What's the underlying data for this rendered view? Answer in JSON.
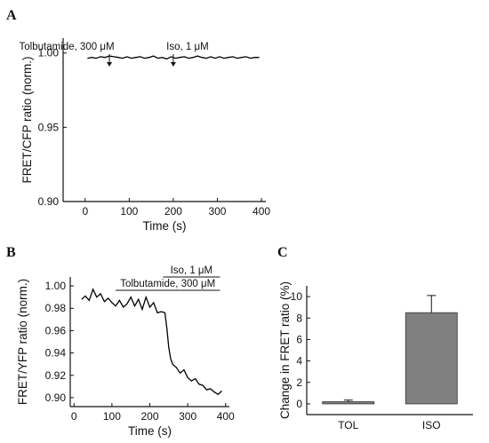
{
  "panels": {
    "a": {
      "letter": "A"
    },
    "b": {
      "letter": "B"
    },
    "c": {
      "letter": "C"
    }
  },
  "chart_data": [
    {
      "type": "line",
      "panel": "A",
      "xlabel": "Time (s)",
      "ylabel": "FRET/CFP ratio (norm.)",
      "xlim": [
        -50,
        410
      ],
      "ylim": [
        0.9,
        1.01
      ],
      "xticks": [
        0,
        100,
        200,
        300,
        400
      ],
      "yticks": [
        0.9,
        0.95,
        1.0
      ],
      "xtick_labels": [
        "0",
        "100",
        "200",
        "300",
        "400"
      ],
      "ytick_labels": [
        "0.90",
        "0.95",
        "1.00"
      ],
      "grid": false,
      "annotations": [
        {
          "text": "Tolbutamide, 300 μM",
          "x": 55
        },
        {
          "text": "Iso, 1 μM",
          "x": 200
        }
      ],
      "series": [
        {
          "x": [
            5,
            15,
            25,
            35,
            45,
            55,
            65,
            75,
            85,
            95,
            105,
            115,
            125,
            135,
            145,
            155,
            165,
            175,
            185,
            195,
            205,
            215,
            225,
            235,
            245,
            255,
            265,
            275,
            285,
            295,
            305,
            315,
            325,
            335,
            345,
            355,
            365,
            375,
            385,
            395
          ],
          "y": [
            0.9965,
            0.997,
            0.9965,
            0.9975,
            0.997,
            0.998,
            0.9975,
            0.997,
            0.9965,
            0.9975,
            0.9965,
            0.997,
            0.9975,
            0.9965,
            0.997,
            0.998,
            0.9965,
            0.997,
            0.996,
            0.9975,
            0.9965,
            0.997,
            0.9975,
            0.9965,
            0.997,
            0.998,
            0.997,
            0.9965,
            0.9975,
            0.9965,
            0.9975,
            0.9965,
            0.997,
            0.9975,
            0.9965,
            0.997,
            0.9975,
            0.9965,
            0.997,
            0.997
          ]
        }
      ]
    },
    {
      "type": "line",
      "panel": "B",
      "xlabel": "Time (s)",
      "ylabel": "FRET/YFP ratio (norm.)",
      "xlim": [
        -10,
        410
      ],
      "ylim": [
        0.892,
        1.008
      ],
      "xticks": [
        0,
        100,
        200,
        300,
        400
      ],
      "yticks": [
        0.9,
        0.92,
        0.94,
        0.96,
        0.98,
        1.0
      ],
      "xtick_labels": [
        "0",
        "100",
        "200",
        "300",
        "400"
      ],
      "ytick_labels": [
        "0.90",
        "0.92",
        "0.94",
        "0.96",
        "0.98",
        "1.00"
      ],
      "grid": false,
      "annotations": [
        {
          "text": "Tolbutamide, 300 μM",
          "x_start": 110,
          "x_end": 385
        },
        {
          "text": "Iso, 1 μM",
          "x_start": 235,
          "x_end": 385
        }
      ],
      "series": [
        {
          "x": [
            20,
            30,
            40,
            50,
            60,
            70,
            80,
            90,
            100,
            110,
            120,
            130,
            140,
            150,
            160,
            170,
            180,
            190,
            200,
            210,
            220,
            230,
            240,
            245,
            250,
            255,
            260,
            270,
            280,
            290,
            300,
            310,
            320,
            330,
            340,
            350,
            360,
            370,
            380,
            390
          ],
          "y": [
            0.988,
            0.991,
            0.987,
            0.997,
            0.99,
            0.993,
            0.986,
            0.989,
            0.985,
            0.982,
            0.987,
            0.981,
            0.984,
            0.99,
            0.982,
            0.988,
            0.979,
            0.99,
            0.981,
            0.985,
            0.976,
            0.977,
            0.976,
            0.962,
            0.945,
            0.935,
            0.93,
            0.927,
            0.922,
            0.925,
            0.918,
            0.915,
            0.917,
            0.912,
            0.911,
            0.907,
            0.908,
            0.905,
            0.903,
            0.906
          ]
        }
      ]
    },
    {
      "type": "bar",
      "panel": "C",
      "categories": [
        "TOL",
        "ISO"
      ],
      "values": [
        0.2,
        8.5
      ],
      "errors": [
        0.15,
        1.6
      ],
      "xlabel": "",
      "ylabel": "Change in FRET ratio (%)",
      "ylim": [
        -1,
        11
      ],
      "yticks": [
        0,
        2,
        4,
        6,
        8,
        10
      ],
      "ytick_labels": [
        "0",
        "2",
        "4",
        "6",
        "8",
        "10"
      ],
      "bar_color": "#808080",
      "grid": false
    }
  ]
}
